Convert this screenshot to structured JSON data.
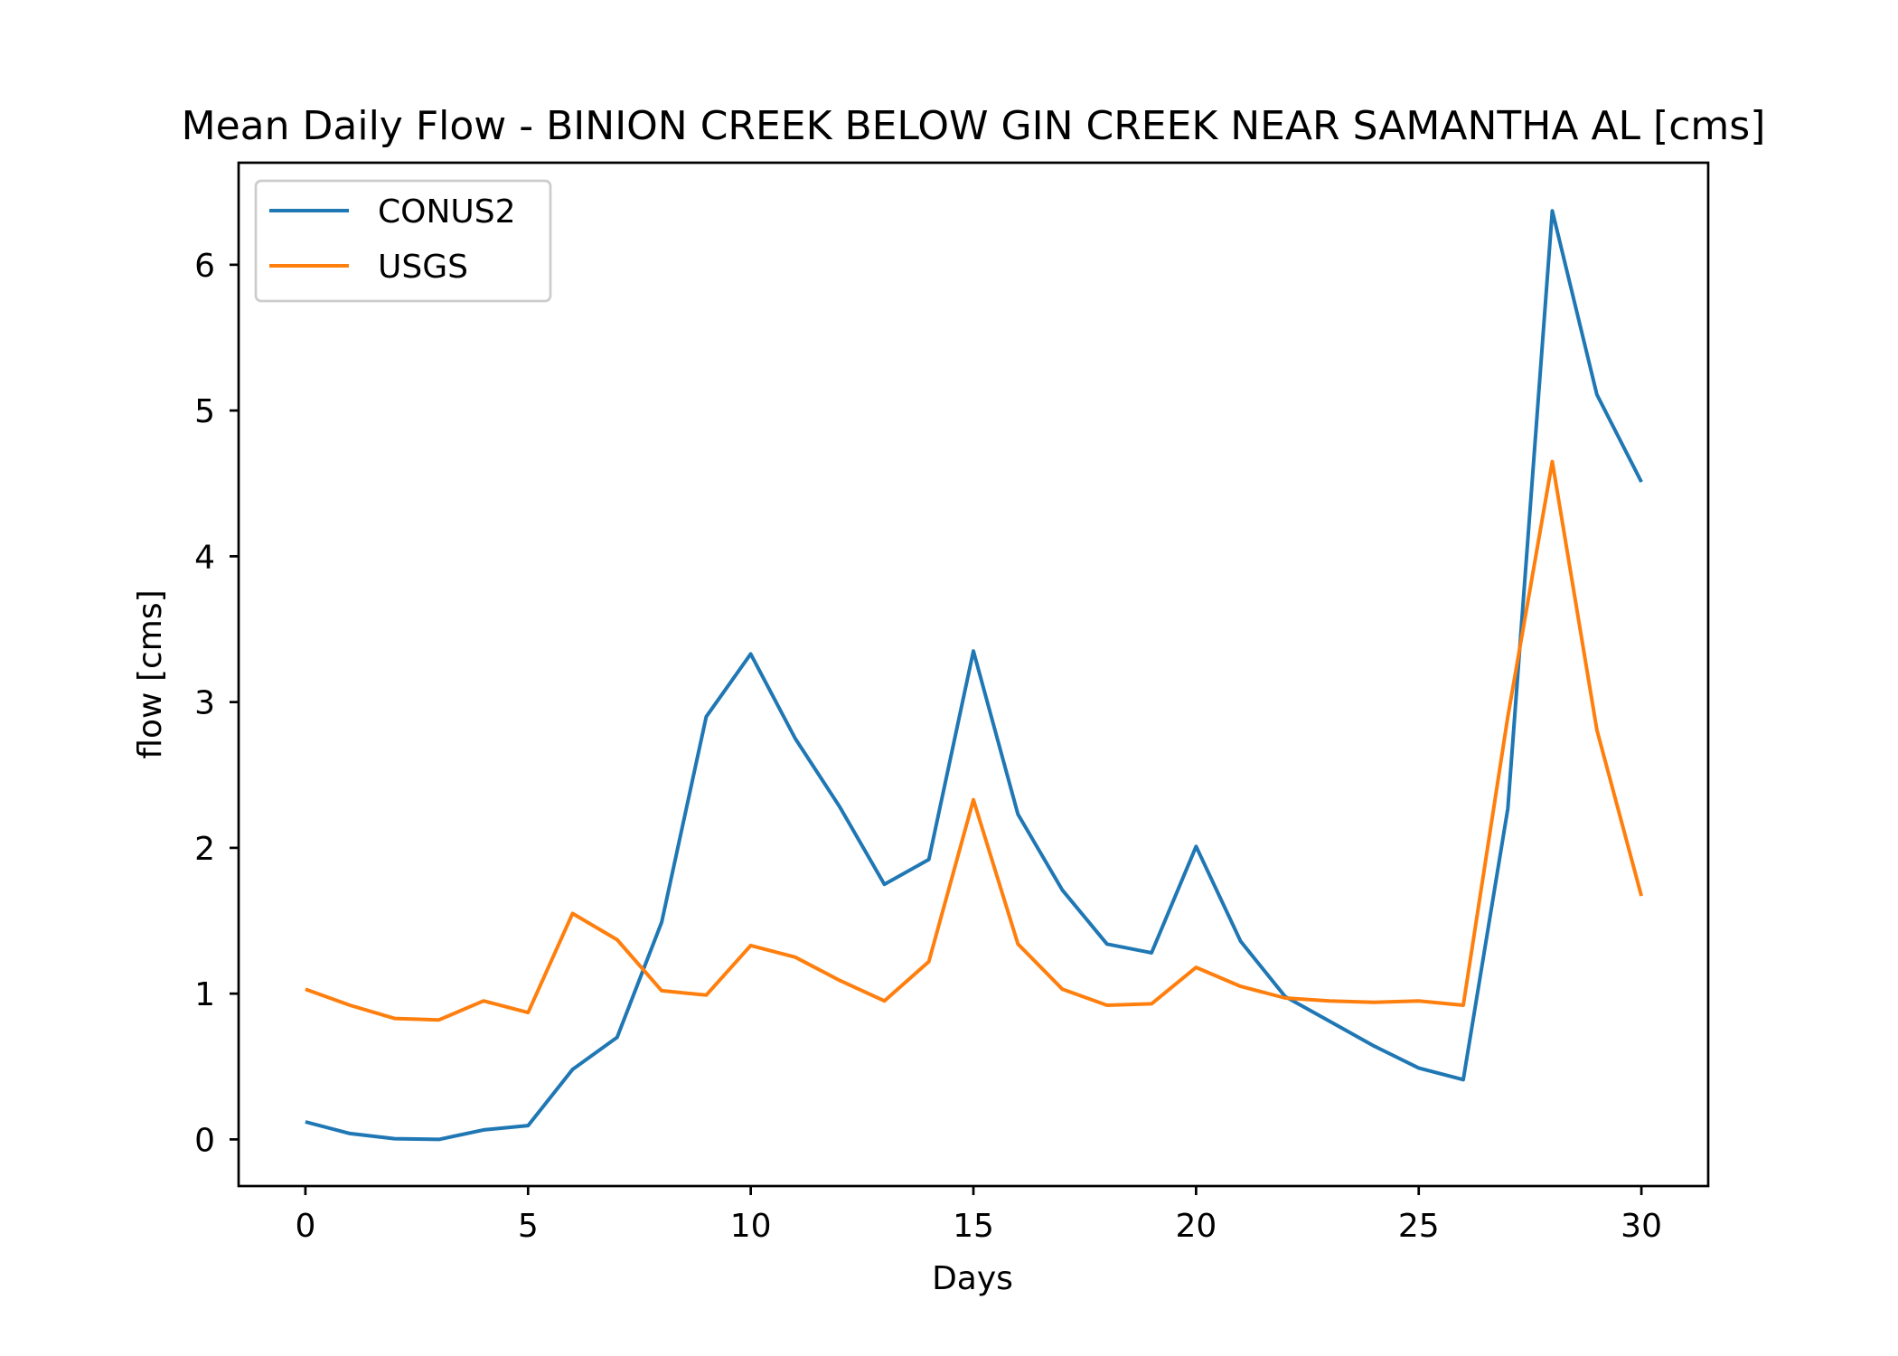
{
  "chart_data": {
    "type": "line",
    "title": "Mean Daily Flow - BINION CREEK BELOW GIN CREEK NEAR SAMANTHA AL [cms]",
    "xlabel": "Days",
    "ylabel": "flow [cms]",
    "xlim": [
      -1.5,
      31.5
    ],
    "ylim": [
      -0.32,
      6.7
    ],
    "x_ticks": [
      0,
      5,
      10,
      15,
      20,
      25,
      30
    ],
    "y_ticks": [
      0,
      1,
      2,
      3,
      4,
      5,
      6
    ],
    "x_tick_labels": [
      "0",
      "5",
      "10",
      "15",
      "20",
      "25",
      "30"
    ],
    "y_tick_labels": [
      "0",
      "1",
      "2",
      "3",
      "4",
      "5",
      "6"
    ],
    "grid": false,
    "legend_position": "top-left",
    "x": [
      0,
      1,
      2,
      3,
      4,
      5,
      6,
      7,
      8,
      9,
      10,
      11,
      12,
      13,
      14,
      15,
      16,
      17,
      18,
      19,
      20,
      21,
      22,
      23,
      24,
      25,
      26,
      27,
      28,
      29,
      30
    ],
    "series": [
      {
        "name": "CONUS2",
        "color": "#1f77b4",
        "values": [
          0.12,
          0.04,
          0.005,
          0.0,
          0.065,
          0.095,
          0.48,
          0.7,
          1.49,
          2.9,
          3.33,
          2.75,
          2.28,
          1.75,
          1.92,
          3.35,
          2.23,
          1.71,
          1.34,
          1.28,
          2.01,
          1.36,
          0.98,
          0.81,
          0.64,
          0.49,
          0.41,
          2.27,
          6.37,
          5.11,
          4.51
        ]
      },
      {
        "name": "USGS",
        "color": "#ff7f0e",
        "values": [
          1.03,
          0.92,
          0.83,
          0.82,
          0.95,
          0.87,
          1.55,
          1.37,
          1.02,
          0.99,
          1.33,
          1.25,
          1.09,
          0.95,
          1.22,
          2.33,
          1.34,
          1.03,
          0.92,
          0.93,
          1.18,
          1.05,
          0.97,
          0.95,
          0.94,
          0.95,
          0.92,
          2.9,
          4.65,
          2.81,
          1.67
        ]
      }
    ]
  }
}
